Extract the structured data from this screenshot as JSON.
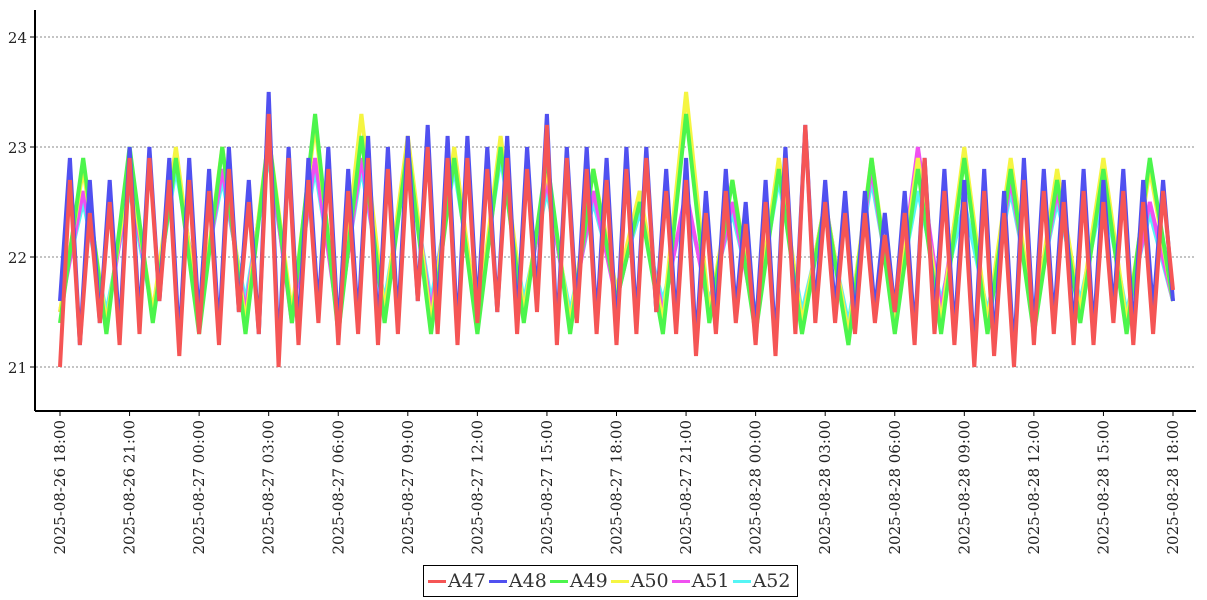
{
  "chart_data": {
    "type": "line",
    "title": "",
    "xlabel": "",
    "ylabel": "",
    "x_start": "2025-08-26 18:00",
    "x_end": "2025-08-28 18:00",
    "ylim": [
      20.6,
      24.25
    ],
    "yticks": [
      "21",
      "22",
      "23",
      "24"
    ],
    "ytick_values": [
      21,
      22,
      23,
      24
    ],
    "grid": "horizontal dotted",
    "legend_position": "bottom-center",
    "xticks": [
      "2025-08-26  18:00",
      "2025-08-26  21:00",
      "2025-08-27  00:00",
      "2025-08-27  03:00",
      "2025-08-27  06:00",
      "2025-08-27  09:00",
      "2025-08-27  12:00",
      "2025-08-27  15:00",
      "2025-08-27  18:00",
      "2025-08-27  21:00",
      "2025-08-28  00:00",
      "2025-08-28  03:00",
      "2025-08-28  06:00",
      "2025-08-28  09:00",
      "2025-08-28  12:00",
      "2025-08-28  15:00",
      "2025-08-28  18:00"
    ],
    "series": [
      {
        "name": "A52",
        "color": "#55f5f5",
        "values": [
          21.6,
          22.5,
          21.5,
          22.6,
          21.5,
          22.8,
          21.6,
          22.7,
          21.6,
          22.9,
          21.5,
          22.8,
          21.5,
          22.8,
          21.6,
          22.9,
          21.6,
          22.8,
          21.5,
          22.9,
          21.6,
          22.6,
          21.5,
          22.5,
          21.7,
          22.4,
          21.6,
          22.5,
          21.6,
          22.4,
          21.5,
          22.7,
          21.5,
          22.4,
          21.4,
          22.7,
          21.5,
          22.6,
          21.6,
          22.5,
          21.5,
          22.6,
          21.5,
          22.5,
          21.6,
          22.6,
          21.5,
          22.4,
          21.6
        ]
      },
      {
        "name": "A51",
        "color": "#f050f0",
        "values": [
          21.5,
          22.6,
          21.4,
          22.7,
          21.5,
          22.9,
          21.5,
          22.8,
          21.5,
          23.0,
          21.4,
          22.9,
          21.4,
          22.9,
          21.5,
          23.0,
          21.5,
          22.9,
          21.4,
          23.0,
          21.5,
          22.7,
          21.4,
          22.6,
          21.6,
          22.5,
          21.5,
          22.6,
          21.5,
          22.5,
          21.4,
          22.8,
          21.4,
          22.5,
          21.3,
          22.8,
          21.4,
          23.0,
          21.5,
          22.9,
          21.4,
          22.7,
          21.4,
          22.6,
          21.5,
          22.8,
          21.4,
          22.5,
          21.6
        ]
      },
      {
        "name": "A50",
        "color": "#f5f542",
        "values": [
          21.5,
          22.8,
          21.4,
          22.8,
          21.5,
          23.0,
          21.4,
          23.0,
          21.4,
          23.1,
          21.5,
          23.2,
          21.4,
          23.3,
          21.5,
          23.1,
          21.4,
          23.0,
          21.4,
          23.1,
          21.5,
          22.8,
          21.4,
          22.8,
          21.7,
          22.6,
          21.4,
          23.5,
          21.5,
          22.7,
          21.4,
          22.9,
          21.4,
          22.5,
          21.3,
          22.9,
          21.4,
          22.9,
          21.4,
          23.0,
          21.4,
          22.9,
          21.4,
          22.8,
          21.5,
          22.9,
          21.4,
          22.8,
          21.6
        ]
      },
      {
        "name": "A49",
        "color": "#4cf54c",
        "values": [
          21.4,
          22.9,
          21.3,
          23.0,
          21.4,
          22.9,
          21.3,
          23.0,
          21.3,
          23.1,
          21.4,
          23.3,
          21.3,
          23.1,
          21.4,
          23.0,
          21.3,
          22.9,
          21.3,
          23.0,
          21.4,
          22.9,
          21.3,
          22.8,
          21.6,
          22.5,
          21.3,
          23.3,
          21.4,
          22.7,
          21.3,
          22.8,
          21.3,
          22.5,
          21.2,
          22.9,
          21.3,
          22.8,
          21.3,
          22.9,
          21.3,
          22.8,
          21.3,
          22.7,
          21.4,
          22.8,
          21.3,
          22.9,
          21.6
        ]
      },
      {
        "name": "A48",
        "color": "#5050f0",
        "values": [
          21.6,
          22.9,
          21.2,
          22.7,
          21.4,
          22.7,
          21.3,
          23.0,
          21.4,
          23.0,
          21.6,
          22.9,
          21.2,
          22.9,
          21.4,
          22.8,
          21.3,
          23.0,
          21.5,
          22.7,
          21.3,
          23.5,
          21.1,
          23.0,
          21.3,
          22.9,
          21.5,
          23.0,
          21.3,
          22.8,
          21.4,
          23.1,
          21.3,
          23.0,
          21.4,
          23.1,
          21.6,
          23.2,
          21.4,
          23.1,
          21.3,
          23.1,
          21.5,
          23.0,
          21.5,
          23.1,
          21.4,
          23.0,
          21.6,
          23.3,
          21.3,
          23.0,
          21.5,
          23.0,
          21.4,
          22.9,
          21.3,
          23.0,
          21.4,
          23.0,
          21.5,
          22.8,
          21.4,
          22.9,
          21.2,
          22.6,
          21.4,
          22.8,
          21.5,
          22.5,
          21.3,
          22.7,
          21.2,
          23.0,
          21.4,
          23.2,
          21.5,
          22.7,
          21.5,
          22.6,
          21.4,
          22.6,
          21.5,
          22.4,
          21.5,
          22.6,
          21.3,
          22.9,
          21.4,
          22.8,
          21.3,
          22.7,
          21.1,
          22.8,
          21.2,
          22.6,
          21.1,
          22.9,
          21.3,
          22.8,
          21.4,
          22.7,
          21.3,
          22.8,
          21.3,
          22.7,
          21.5,
          22.8,
          21.3,
          22.7,
          21.5,
          22.7,
          21.6
        ]
      },
      {
        "name": "A47",
        "color": "#f55555",
        "values": [
          21.0,
          22.7,
          21.2,
          22.4,
          21.4,
          22.5,
          21.2,
          22.9,
          21.3,
          22.9,
          21.6,
          22.7,
          21.1,
          22.7,
          21.3,
          22.6,
          21.2,
          22.8,
          21.5,
          22.5,
          21.3,
          23.3,
          21.0,
          22.9,
          21.2,
          22.7,
          21.4,
          22.8,
          21.2,
          22.6,
          21.3,
          22.9,
          21.2,
          22.8,
          21.3,
          22.9,
          21.6,
          23.0,
          21.3,
          22.9,
          21.2,
          22.9,
          21.4,
          22.8,
          21.5,
          22.9,
          21.3,
          22.8,
          21.5,
          23.2,
          21.2,
          22.9,
          21.4,
          22.8,
          21.3,
          22.7,
          21.2,
          22.8,
          21.3,
          22.9,
          21.5,
          22.6,
          21.3,
          22.7,
          21.1,
          22.4,
          21.3,
          22.6,
          21.4,
          22.3,
          21.2,
          22.5,
          21.1,
          22.9,
          21.3,
          23.2,
          21.4,
          22.5,
          21.4,
          22.4,
          21.3,
          22.4,
          21.4,
          22.2,
          21.5,
          22.4,
          21.2,
          22.9,
          21.3,
          22.6,
          21.2,
          22.5,
          21.0,
          22.6,
          21.1,
          22.4,
          21.0,
          22.7,
          21.2,
          22.6,
          21.3,
          22.5,
          21.2,
          22.6,
          21.2,
          22.5,
          21.4,
          22.6,
          21.2,
          22.5,
          21.3,
          22.6,
          21.7
        ]
      }
    ]
  }
}
